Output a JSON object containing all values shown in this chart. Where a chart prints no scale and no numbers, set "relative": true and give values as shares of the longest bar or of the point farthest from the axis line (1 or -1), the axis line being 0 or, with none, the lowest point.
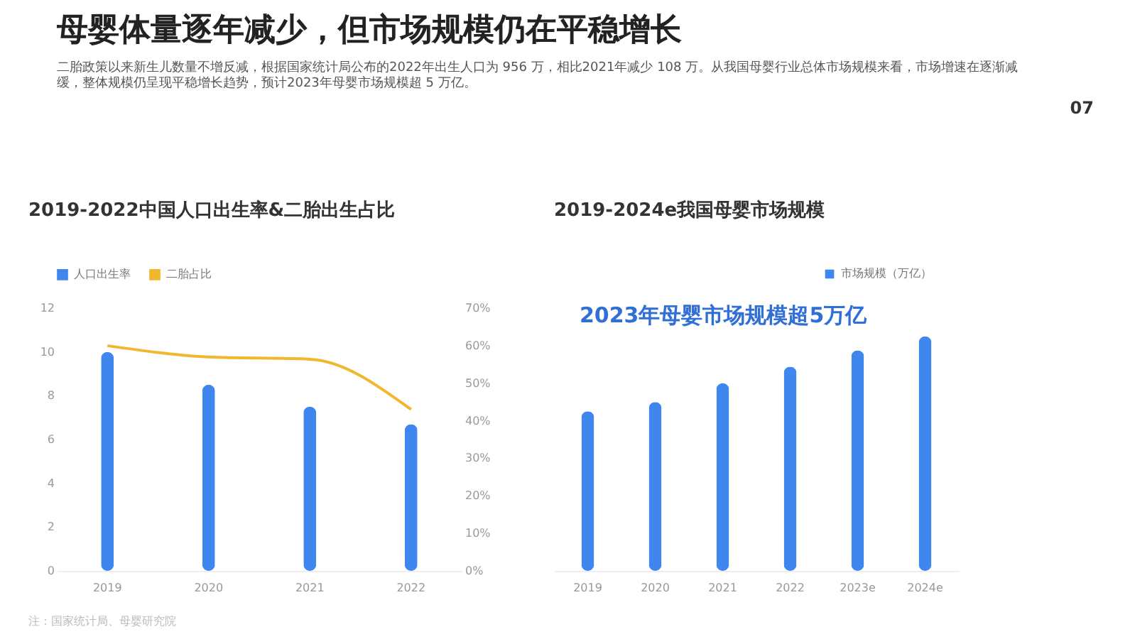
{
  "chart_data": [
    {
      "type": "other",
      "title": "母婴体量逐年减少，但市场规模仍在平稳增长",
      "subtitle": "二胎政策以来新生儿数量不增反减，根据国家统计局公布的2022年出生人口为 956 万，相比2021年减少 108 万。从我国母婴行业总体市场规模来看，市场增速在逐渐减缓，整体规模仍呈现平稳增长趋势，预计2023年母婴市场规模超 5 万亿。",
      "annotations": [
        "07"
      ]
    },
    {
      "type": "bar",
      "title": "2019-2022中国人口出生率&二胎出生占比",
      "categories": [
        "2019",
        "2020",
        "2021",
        "2022"
      ],
      "series": [
        {
          "name": "人口出生率",
          "type": "bar",
          "color": "#3f86ee",
          "values": [
            10.0,
            8.5,
            7.5,
            6.7
          ]
        },
        {
          "name": "二胎占比",
          "type": "line",
          "axis": "y2",
          "color": "#f0b72f",
          "values": [
            60,
            57,
            56.4,
            43
          ]
        }
      ],
      "ylim": [
        0,
        12
      ],
      "yticks": [
        0,
        2,
        4,
        6,
        8,
        10,
        12
      ],
      "y2lim": [
        0,
        70
      ],
      "y2ticks": [
        {
          "value": 0,
          "label": "0%"
        },
        {
          "value": 10,
          "label": "10%"
        },
        {
          "value": 20,
          "label": "20%"
        },
        {
          "value": 30,
          "label": "30%"
        },
        {
          "value": 40,
          "label": "40%"
        },
        {
          "value": 50,
          "label": "50%"
        },
        {
          "value": 60,
          "label": "60%"
        },
        {
          "value": 70,
          "label": "70%"
        }
      ],
      "grid": false,
      "legend": "top left",
      "marker": "none",
      "line_style": "solid",
      "annotations": [
        "注：国家统计局、母婴研究院"
      ]
    },
    {
      "type": "bar",
      "title": "2019-2024e我国母婴市场规模",
      "categories": [
        "2019",
        "2020",
        "2021",
        "2022",
        "2023e",
        "2024e"
      ],
      "relative": true,
      "series": [
        {
          "name": "市场规模（万亿）",
          "color": "#3f86ee",
          "values": [
            0.68,
            0.72,
            0.8,
            0.87,
            0.94,
            1
          ]
        }
      ],
      "grid": false,
      "legend": "top right",
      "annotations": [
        "2023年母婴市场规模超5万亿"
      ]
    }
  ]
}
